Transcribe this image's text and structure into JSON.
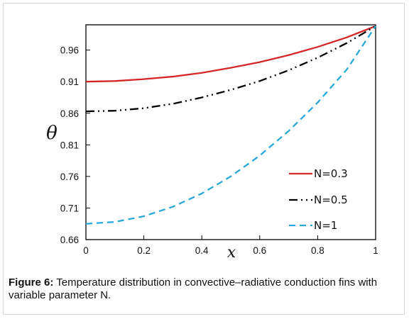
{
  "caption": {
    "label": "Figure 6:",
    "text": " Temperature distribution in convective–radiative conduction fins with variable parameter N."
  },
  "chart_data": {
    "type": "line",
    "xlabel": "x",
    "ylabel": "θ",
    "xlim": [
      0,
      1
    ],
    "ylim": [
      0.66,
      1.0
    ],
    "xticks": [
      "0",
      "0.2",
      "0.4",
      "0.6",
      "0.8",
      "1"
    ],
    "yticks": [
      "0.66",
      "0.71",
      "0.76",
      "0.81",
      "0.86",
      "0.91",
      "0.96"
    ],
    "grid": false,
    "legend_position": "bottom-right",
    "x": [
      0,
      0.1,
      0.2,
      0.3,
      0.4,
      0.5,
      0.6,
      0.7,
      0.8,
      0.9,
      1.0
    ],
    "series": [
      {
        "name": "N=0.3",
        "color": "#d62728",
        "dash": "solid",
        "values": [
          0.91,
          0.911,
          0.914,
          0.918,
          0.924,
          0.932,
          0.941,
          0.952,
          0.965,
          0.98,
          0.998
        ]
      },
      {
        "name": "N=0.5",
        "color": "#000000",
        "dash": "dash-dot-dot",
        "values": [
          0.863,
          0.864,
          0.868,
          0.875,
          0.885,
          0.897,
          0.911,
          0.928,
          0.948,
          0.971,
          0.998
        ]
      },
      {
        "name": "N=1",
        "color": "#29a8d8",
        "dash": "dashed",
        "values": [
          0.685,
          0.688,
          0.697,
          0.712,
          0.733,
          0.76,
          0.793,
          0.832,
          0.877,
          0.929,
          0.998
        ]
      }
    ]
  }
}
